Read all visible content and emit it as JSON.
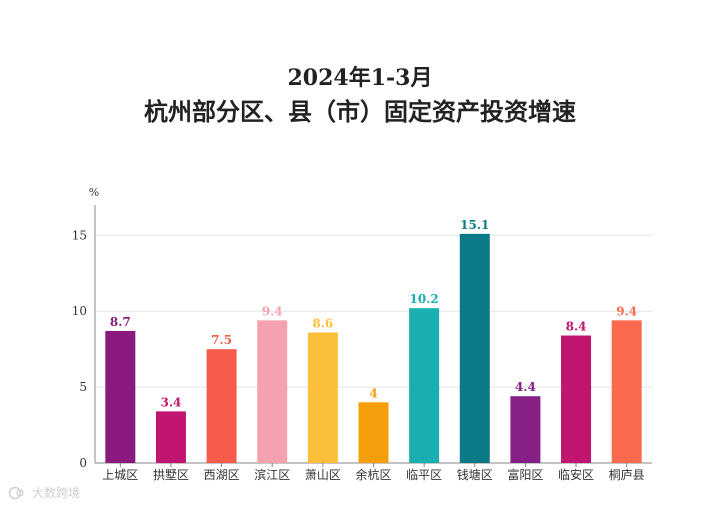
{
  "header": {
    "title_line1": "2024年1-3月",
    "title_line2": "杭州部分区、县（市）固定资产投资增速"
  },
  "chart_data": {
    "type": "bar",
    "title": "2024年1-3月 杭州部分区、县（市）固定资产投资增速",
    "ylabel": "%",
    "xlabel": "",
    "ylim": [
      0,
      17
    ],
    "yticks": [
      0,
      5,
      10,
      15
    ],
    "grid": true,
    "categories": [
      "上城区",
      "拱墅区",
      "西湖区",
      "滨江区",
      "萧山区",
      "余杭区",
      "临平区",
      "钱塘区",
      "富阳区",
      "临安区",
      "桐庐县"
    ],
    "values": [
      8.7,
      3.4,
      7.5,
      9.4,
      8.6,
      4,
      10.2,
      15.1,
      4.4,
      8.4,
      9.4
    ],
    "colors": [
      "#8a1a7e",
      "#c01570",
      "#f55c4a",
      "#f4a3ae",
      "#fbbf3b",
      "#f59e0b",
      "#1aaeb0",
      "#0b7a87",
      "#861f86",
      "#c01570",
      "#fb6a4f"
    ]
  },
  "watermark": {
    "text": "大数跨境"
  }
}
